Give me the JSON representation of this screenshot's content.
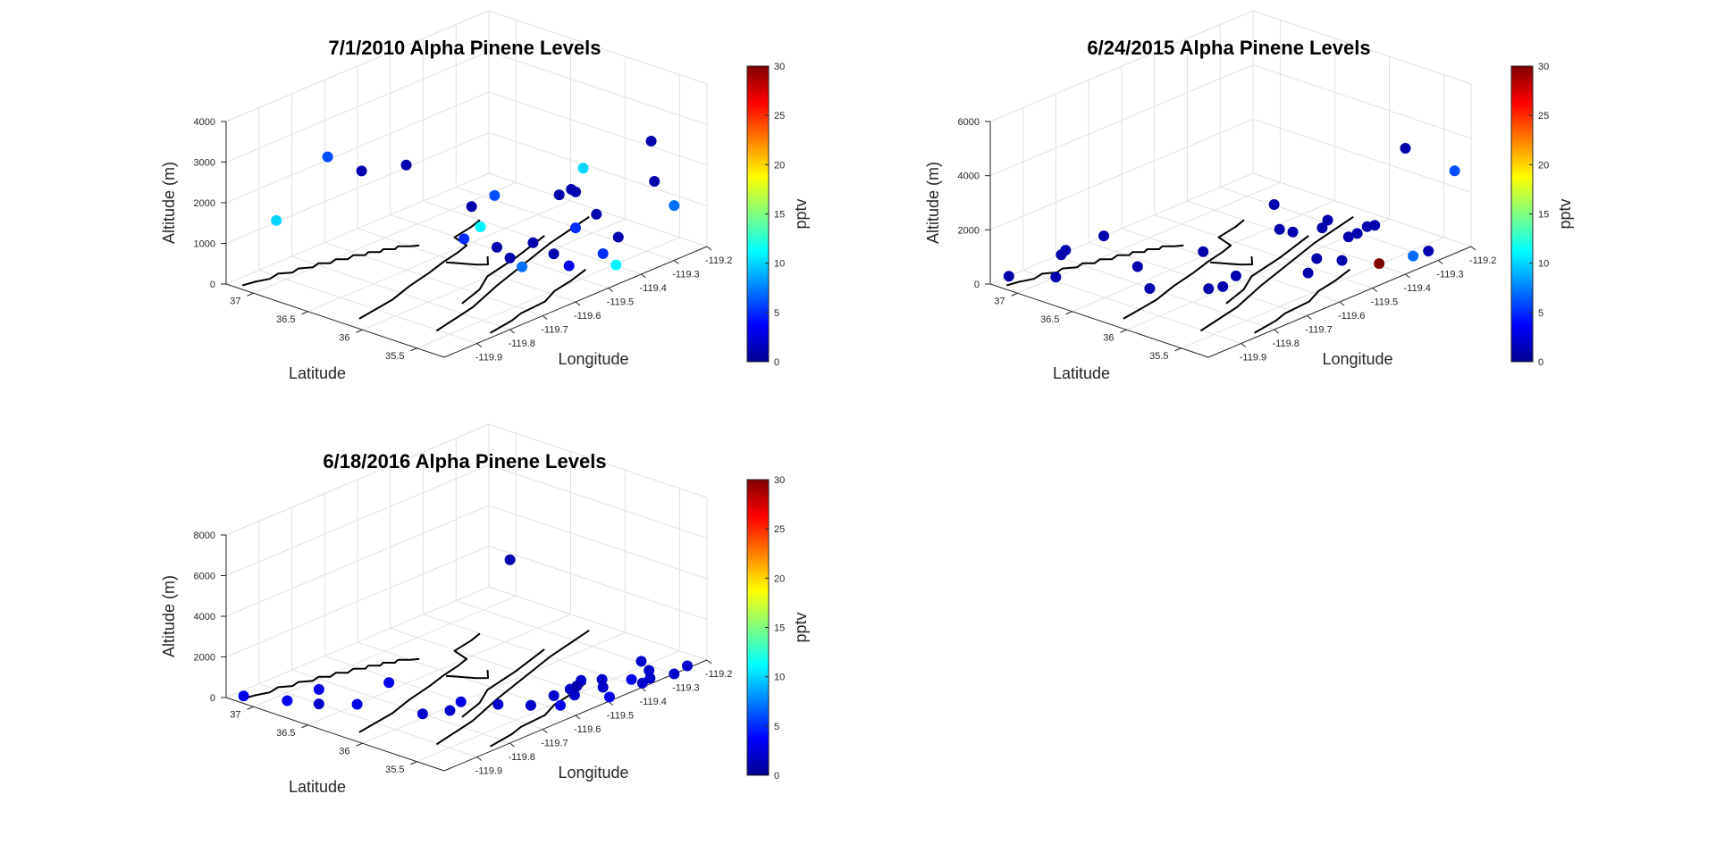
{
  "colors": {
    "jet_stops": [
      "#00008f",
      "#0000ff",
      "#0080ff",
      "#00ffff",
      "#80ff80",
      "#ffff00",
      "#ff8000",
      "#ff0000",
      "#800000"
    ],
    "grid": "#e2e2e2",
    "axis": "#262626",
    "map_line": "#000000"
  },
  "chart_data": [
    {
      "type": "scatter",
      "title": "7/1/2010 Alpha Pinene Levels",
      "xlabel": "Longitude",
      "ylabel": "Latitude",
      "zlabel": "Altitude (m)",
      "colorbar_label": "pptv",
      "colorbar_ticks": [
        "0",
        "5",
        "10",
        "15",
        "20",
        "25",
        "30"
      ],
      "clim": [
        0,
        30
      ],
      "xlim": [
        -120.0,
        -119.2
      ],
      "ylim": [
        35.25,
        37.25
      ],
      "zlim": [
        0,
        4000
      ],
      "x_ticks": [
        "-119.9",
        "-119.8",
        "-119.7",
        "-119.6",
        "-119.5",
        "-119.4",
        "-119.3",
        "-119.2"
      ],
      "x_tick_values": [
        -119.9,
        -119.8,
        -119.7,
        -119.6,
        -119.5,
        -119.4,
        -119.3,
        -119.2
      ],
      "y_ticks": [
        "35.5",
        "36",
        "36.5",
        "37"
      ],
      "y_tick_values": [
        35.5,
        36,
        36.5,
        37
      ],
      "z_ticks": [
        "0",
        "1000",
        "2000",
        "3000",
        "4000"
      ],
      "z_tick_values": [
        0,
        1000,
        2000,
        3000,
        4000
      ],
      "grid": true,
      "points": [
        {
          "lon": -119.93,
          "lat": 37.0,
          "alt": 1550,
          "pptv": 10
        },
        {
          "lon": -119.94,
          "lat": 36.5,
          "alt": 3600,
          "pptv": 6
        },
        {
          "lon": -119.82,
          "lat": 36.55,
          "alt": 2800,
          "pptv": 1
        },
        {
          "lon": -119.85,
          "lat": 36.05,
          "alt": 3500,
          "pptv": 1
        },
        {
          "lon": -119.84,
          "lat": 35.55,
          "alt": 2100,
          "pptv": 5
        },
        {
          "lon": -119.78,
          "lat": 35.45,
          "alt": 3050,
          "pptv": 6
        },
        {
          "lon": -119.88,
          "lat": 35.36,
          "alt": 3200,
          "pptv": 1
        },
        {
          "lon": -119.86,
          "lat": 35.34,
          "alt": 2650,
          "pptv": 11
        },
        {
          "lon": -119.74,
          "lat": 35.55,
          "alt": 1550,
          "pptv": 1
        },
        {
          "lon": -119.7,
          "lat": 35.55,
          "alt": 1150,
          "pptv": 1
        },
        {
          "lon": -119.67,
          "lat": 35.53,
          "alt": 850,
          "pptv": 7
        },
        {
          "lon": -119.64,
          "lat": 35.52,
          "alt": 1350,
          "pptv": 1
        },
        {
          "lon": -119.6,
          "lat": 35.45,
          "alt": 1000,
          "pptv": 1
        },
        {
          "lon": -119.57,
          "lat": 35.4,
          "alt": 650,
          "pptv": 3
        },
        {
          "lon": -119.6,
          "lat": 35.4,
          "alt": 2500,
          "pptv": 1
        },
        {
          "lon": -119.57,
          "lat": 35.38,
          "alt": 2550,
          "pptv": 1
        },
        {
          "lon": -119.55,
          "lat": 35.4,
          "alt": 2400,
          "pptv": 1
        },
        {
          "lon": -119.58,
          "lat": 35.31,
          "alt": 1700,
          "pptv": 5
        },
        {
          "lon": -119.55,
          "lat": 35.33,
          "alt": 3050,
          "pptv": 10
        },
        {
          "lon": -119.53,
          "lat": 35.27,
          "alt": 1900,
          "pptv": 1
        },
        {
          "lon": -119.5,
          "lat": 35.3,
          "alt": 800,
          "pptv": 5
        },
        {
          "lon": -119.47,
          "lat": 35.27,
          "alt": 450,
          "pptv": 11
        },
        {
          "lon": -119.47,
          "lat": 35.25,
          "alt": 1150,
          "pptv": 1
        },
        {
          "lon": -119.36,
          "lat": 35.25,
          "alt": 2150,
          "pptv": 1
        },
        {
          "lon": -119.35,
          "lat": 35.31,
          "alt": 3050,
          "pptv": 1
        },
        {
          "lon": -119.3,
          "lat": 35.25,
          "alt": 1350,
          "pptv": 7
        }
      ]
    },
    {
      "type": "scatter",
      "title": "6/24/2015 Alpha Pinene Levels",
      "xlabel": "Longitude",
      "ylabel": "Latitude",
      "zlabel": "Altitude (m)",
      "colorbar_label": "pptv",
      "colorbar_ticks": [
        "0",
        "5",
        "10",
        "15",
        "20",
        "25",
        "30"
      ],
      "clim": [
        0,
        30
      ],
      "xlim": [
        -120.0,
        -119.2
      ],
      "ylim": [
        35.25,
        37.25
      ],
      "zlim": [
        0,
        6000
      ],
      "x_ticks": [
        "-119.9",
        "-119.8",
        "-119.7",
        "-119.6",
        "-119.5",
        "-119.4",
        "-119.3",
        "-119.2"
      ],
      "x_tick_values": [
        -119.9,
        -119.8,
        -119.7,
        -119.6,
        -119.5,
        -119.4,
        -119.3,
        -119.2
      ],
      "y_ticks": [
        "35.5",
        "36",
        "36.5",
        "37"
      ],
      "y_tick_values": [
        35.5,
        36,
        36.5,
        37
      ],
      "z_ticks": [
        "0",
        "2000",
        "4000",
        "6000"
      ],
      "z_tick_values": [
        0,
        2000,
        4000,
        6000
      ],
      "grid": true,
      "points": [
        {
          "lon": -119.96,
          "lat": 37.2,
          "alt": 150,
          "pptv": 1
        },
        {
          "lon": -119.9,
          "lat": 36.95,
          "alt": 150,
          "pptv": 1
        },
        {
          "lon": -119.92,
          "lat": 36.8,
          "alt": 1450,
          "pptv": 1
        },
        {
          "lon": -119.95,
          "lat": 36.75,
          "alt": 1500,
          "pptv": 1
        },
        {
          "lon": -119.92,
          "lat": 36.45,
          "alt": 2450,
          "pptv": 1
        },
        {
          "lon": -119.9,
          "lat": 36.2,
          "alt": 1550,
          "pptv": 1
        },
        {
          "lon": -119.83,
          "lat": 36.3,
          "alt": 250,
          "pptv": 1
        },
        {
          "lon": -119.8,
          "lat": 35.9,
          "alt": 2000,
          "pptv": 1
        },
        {
          "lon": -119.8,
          "lat": 35.85,
          "alt": 700,
          "pptv": 1
        },
        {
          "lon": -119.8,
          "lat": 35.72,
          "alt": 950,
          "pptv": 1
        },
        {
          "lon": -119.75,
          "lat": 35.75,
          "alt": 1050,
          "pptv": 1
        },
        {
          "lon": -119.7,
          "lat": 35.5,
          "alt": 2850,
          "pptv": 1
        },
        {
          "lon": -119.7,
          "lat": 35.55,
          "alt": 3700,
          "pptv": 1
        },
        {
          "lon": -119.66,
          "lat": 35.5,
          "alt": 2550,
          "pptv": 1
        },
        {
          "lon": -119.63,
          "lat": 35.45,
          "alt": 950,
          "pptv": 1
        },
        {
          "lon": -119.62,
          "lat": 35.4,
          "alt": 1500,
          "pptv": 1
        },
        {
          "lon": -119.62,
          "lat": 35.35,
          "alt": 2700,
          "pptv": 1
        },
        {
          "lon": -119.62,
          "lat": 35.3,
          "alt": 3050,
          "pptv": 1
        },
        {
          "lon": -119.55,
          "lat": 35.38,
          "alt": 1100,
          "pptv": 1
        },
        {
          "lon": -119.55,
          "lat": 35.32,
          "alt": 2050,
          "pptv": 1
        },
        {
          "lon": -119.53,
          "lat": 35.3,
          "alt": 2100,
          "pptv": 1
        },
        {
          "lon": -119.5,
          "lat": 35.3,
          "alt": 2200,
          "pptv": 1
        },
        {
          "lon": -119.49,
          "lat": 35.26,
          "alt": 2250,
          "pptv": 1
        },
        {
          "lon": -119.48,
          "lat": 35.25,
          "alt": 800,
          "pptv": 30
        },
        {
          "lon": -119.4,
          "lat": 35.25,
          "alt": 4650,
          "pptv": 1
        },
        {
          "lon": -119.36,
          "lat": 35.3,
          "alt": 400,
          "pptv": 7
        },
        {
          "lon": -119.33,
          "lat": 35.25,
          "alt": 500,
          "pptv": 1
        },
        {
          "lon": -119.25,
          "lat": 35.25,
          "alt": 3050,
          "pptv": 6
        }
      ]
    },
    {
      "type": "scatter",
      "title": "6/18/2016 Alpha Pinene Levels",
      "xlabel": "Longitude",
      "ylabel": "Latitude",
      "zlabel": "Altitude (m)",
      "colorbar_label": "pptv",
      "colorbar_ticks": [
        "0",
        "5",
        "10",
        "15",
        "20",
        "25",
        "30"
      ],
      "clim": [
        0,
        30
      ],
      "xlim": [
        -120.0,
        -119.2
      ],
      "ylim": [
        35.25,
        37.25
      ],
      "zlim": [
        0,
        8000
      ],
      "x_ticks": [
        "-119.9",
        "-119.8",
        "-119.7",
        "-119.6",
        "-119.5",
        "-119.4",
        "-119.3",
        "-119.2"
      ],
      "x_tick_values": [
        -119.9,
        -119.8,
        -119.7,
        -119.6,
        -119.5,
        -119.4,
        -119.3,
        -119.2
      ],
      "y_ticks": [
        "35.5",
        "36",
        "36.5",
        "37"
      ],
      "y_tick_values": [
        35.5,
        36,
        36.5,
        37
      ],
      "z_ticks": [
        "0",
        "2000",
        "4000",
        "6000",
        "8000"
      ],
      "z_tick_values": [
        0,
        2000,
        4000,
        6000,
        8000
      ],
      "grid": true,
      "points": [
        {
          "lon": -119.97,
          "lat": 37.18,
          "alt": 0,
          "pptv": 3
        },
        {
          "lon": -119.93,
          "lat": 36.9,
          "alt": 0,
          "pptv": 3
        },
        {
          "lon": -119.85,
          "lat": 36.85,
          "alt": 100,
          "pptv": 3
        },
        {
          "lon": -119.9,
          "lat": 36.7,
          "alt": 0,
          "pptv": 2
        },
        {
          "lon": -119.85,
          "lat": 36.5,
          "alt": 0,
          "pptv": 3
        },
        {
          "lon": -119.72,
          "lat": 36.6,
          "alt": 0,
          "pptv": 3
        },
        {
          "lon": -119.8,
          "lat": 36.05,
          "alt": 0,
          "pptv": 2
        },
        {
          "lon": -119.7,
          "lat": 36.0,
          "alt": 0,
          "pptv": 3
        },
        {
          "lon": -119.75,
          "lat": 35.95,
          "alt": 0,
          "pptv": 2
        },
        {
          "lon": -119.66,
          "lat": 35.78,
          "alt": 0,
          "pptv": 2
        },
        {
          "lon": -119.7,
          "lat": 35.55,
          "alt": 7800,
          "pptv": 1
        },
        {
          "lon": -119.62,
          "lat": 35.6,
          "alt": 0,
          "pptv": 2
        },
        {
          "lon": -119.58,
          "lat": 35.45,
          "alt": 0,
          "pptv": 3
        },
        {
          "lon": -119.6,
          "lat": 35.3,
          "alt": 1200,
          "pptv": 2
        },
        {
          "lon": -119.55,
          "lat": 35.35,
          "alt": 1200,
          "pptv": 2
        },
        {
          "lon": -119.52,
          "lat": 35.5,
          "alt": 0,
          "pptv": 2
        },
        {
          "lon": -119.55,
          "lat": 35.6,
          "alt": 0,
          "pptv": 2
        },
        {
          "lon": -119.48,
          "lat": 35.3,
          "alt": 0,
          "pptv": 3
        },
        {
          "lon": -119.45,
          "lat": 35.45,
          "alt": 0,
          "pptv": 2
        },
        {
          "lon": -119.48,
          "lat": 35.6,
          "alt": 0,
          "pptv": 1
        },
        {
          "lon": -119.42,
          "lat": 35.55,
          "alt": 0,
          "pptv": 2
        },
        {
          "lon": -119.38,
          "lat": 35.3,
          "alt": 0,
          "pptv": 2
        },
        {
          "lon": -119.35,
          "lat": 35.32,
          "alt": 0,
          "pptv": 2
        },
        {
          "lon": -119.38,
          "lat": 35.4,
          "alt": 0,
          "pptv": 3
        },
        {
          "lon": -119.4,
          "lat": 35.25,
          "alt": 1300,
          "pptv": 2
        },
        {
          "lon": -119.32,
          "lat": 35.42,
          "alt": 0,
          "pptv": 2
        },
        {
          "lon": -119.3,
          "lat": 35.25,
          "alt": 0,
          "pptv": 2
        },
        {
          "lon": -119.25,
          "lat": 35.28,
          "alt": 0,
          "pptv": 2
        }
      ]
    }
  ]
}
